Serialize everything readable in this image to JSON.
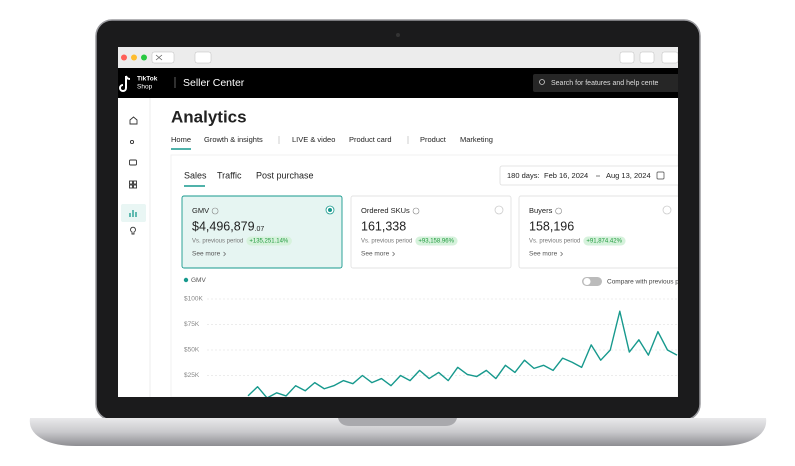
{
  "header": {
    "logo_top": "TikTok",
    "logo_bottom": "Shop",
    "title": "Seller Center",
    "search_placeholder": "Search for features and help cente"
  },
  "page_title": "Analytics",
  "nav_tabs": [
    "Home",
    "Growth & insights",
    "LIVE & video",
    "Product card",
    "Product",
    "Marketing"
  ],
  "sub_tabs": [
    "Sales",
    "Traffic",
    "Post purchase"
  ],
  "date_range": {
    "label": "180 days:",
    "start": "Feb 16, 2024",
    "end": "Aug 13, 2024"
  },
  "metrics": [
    {
      "name": "GMV",
      "value": "$4,496,879",
      "value_suffix": ".07",
      "compare_label": "Vs. previous period",
      "change": "+135,251.14%",
      "link": "See more"
    },
    {
      "name": "Ordered SKUs",
      "value": "161,338",
      "compare_label": "Vs. previous period",
      "change": "+93,158.96%",
      "link": "See more"
    },
    {
      "name": "Buyers",
      "value": "158,196",
      "compare_label": "Vs. previous period",
      "change": "+91,874.42%",
      "link": "See more"
    }
  ],
  "compare_toggle": "Compare with previous p",
  "chart_data": {
    "type": "line",
    "series": [
      {
        "name": "GMV",
        "color": "#17998d",
        "values": [
          5000,
          14000,
          3000,
          8000,
          5000,
          15000,
          10000,
          18000,
          12000,
          15000,
          20000,
          17000,
          25000,
          18000,
          22000,
          15000,
          25000,
          20000,
          30000,
          22000,
          28000,
          20000,
          33000,
          26000,
          24000,
          30000,
          22000,
          35000,
          28000,
          40000,
          32000,
          35000,
          30000,
          42000,
          38000,
          33000,
          55000,
          40000,
          50000,
          88000,
          48000,
          60000,
          45000,
          68000,
          50000,
          45000
        ]
      }
    ],
    "ylim": [
      0,
      100000
    ],
    "yticks": [
      {
        "value": 100000,
        "label": "$100K"
      },
      {
        "value": 75000,
        "label": "$75K"
      },
      {
        "value": 50000,
        "label": "$50K"
      },
      {
        "value": 25000,
        "label": "$25K"
      }
    ],
    "grid": true
  }
}
